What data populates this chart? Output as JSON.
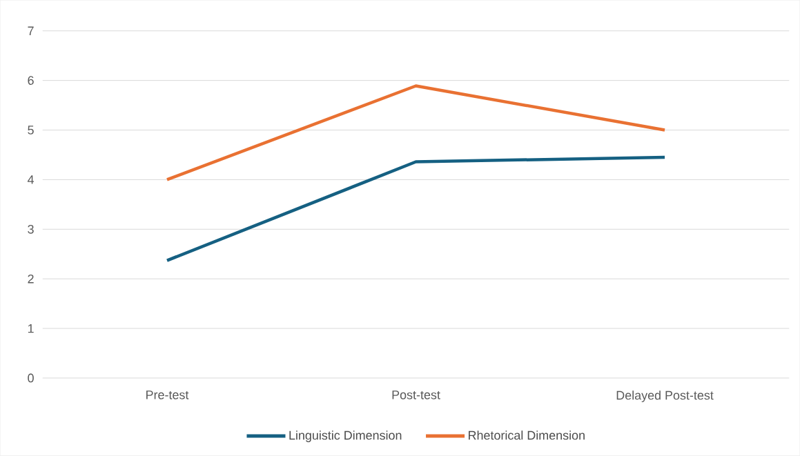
{
  "chart_data": {
    "type": "line",
    "categories": [
      "Pre-test",
      "Post-test",
      "Delayed Post-test"
    ],
    "series": [
      {
        "name": "Linguistic Dimension",
        "color": "#156082",
        "values": [
          2.37,
          4.36,
          4.45
        ]
      },
      {
        "name": "Rhetorical Dimension",
        "color": "#e97132",
        "values": [
          4.0,
          5.89,
          5.0
        ]
      }
    ],
    "ylim": [
      0,
      7
    ],
    "yticks": [
      0,
      1,
      2,
      3,
      4,
      5,
      6,
      7
    ],
    "grid": "y",
    "legend": "bottom",
    "marker": "none",
    "line_style": "solid"
  }
}
